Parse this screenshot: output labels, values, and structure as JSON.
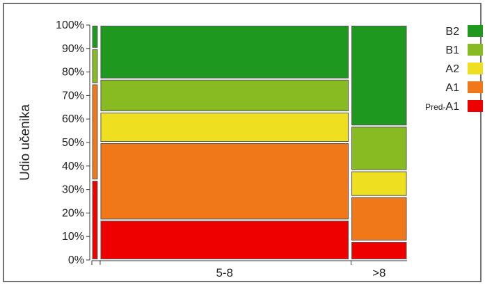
{
  "chart_data": {
    "type": "mosaic",
    "title": "",
    "xlabel": "",
    "ylabel": "Udio učenika",
    "yticks": [
      "0%",
      "10%",
      "20%",
      "30%",
      "40%",
      "50%",
      "60%",
      "70%",
      "80%",
      "90%",
      "100%"
    ],
    "ylim": [
      0,
      100
    ],
    "legend_position": "right",
    "columns": [
      {
        "label": "",
        "width_share": 0.02
      },
      {
        "label": "5-8",
        "width_share": 0.8
      },
      {
        "label": ">8",
        "width_share": 0.18
      }
    ],
    "series": [
      {
        "name": "Pred-A1",
        "name_prefix": "Pred-",
        "name_main": "A1",
        "color": "#ee0000",
        "values": [
          34,
          17,
          8
        ]
      },
      {
        "name": "A1",
        "color": "#f07818",
        "values": [
          41,
          33,
          19
        ]
      },
      {
        "name": "A2",
        "color": "#eee020",
        "values": [
          0,
          13,
          11
        ]
      },
      {
        "name": "B1",
        "color": "#88bb22",
        "values": [
          15,
          14,
          19
        ]
      },
      {
        "name": "B2",
        "color": "#1e981e",
        "values": [
          10,
          23,
          43
        ]
      }
    ]
  }
}
